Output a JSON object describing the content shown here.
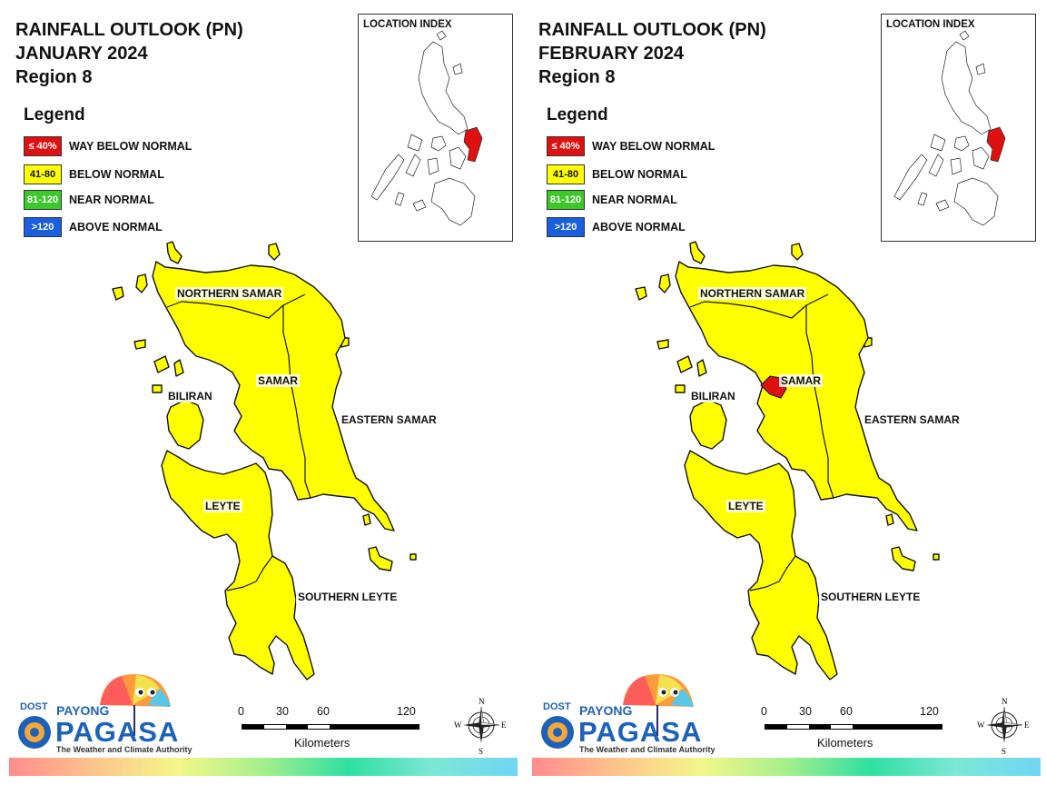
{
  "panels": [
    {
      "title_line1": "RAINFALL OUTLOOK (PN)",
      "title_line2": "JANUARY 2024",
      "title_line3": "Region 8",
      "dry_spot_color": ""
    },
    {
      "title_line1": "RAINFALL OUTLOOK (PN)",
      "title_line2": "FEBRUARY 2024",
      "title_line3": "Region 8",
      "dry_spot_color": "#e01010"
    }
  ],
  "legend": {
    "heading": "Legend",
    "items": [
      {
        "range": "≤ 40%",
        "label": "WAY BELOW NORMAL",
        "color": "#e01010",
        "text_color": "#ffffff"
      },
      {
        "range": "41-80",
        "label": "BELOW NORMAL",
        "color": "#ffff00",
        "text_color": "#111111"
      },
      {
        "range": "81-120",
        "label": "NEAR NORMAL",
        "color": "#3cc82a",
        "text_color": "#ffffff"
      },
      {
        "range": ">120",
        "label": "ABOVE NORMAL",
        "color": "#1a5ee0",
        "text_color": "#ffffff"
      }
    ]
  },
  "inset": {
    "title": "LOCATION INDEX",
    "highlight_color": "#e01010"
  },
  "provinces": {
    "northern_samar": "NORTHERN SAMAR",
    "samar": "SAMAR",
    "biliran": "BILIRAN",
    "eastern_samar": "EASTERN SAMAR",
    "leyte": "LEYTE",
    "southern_leyte": "SOUTHERN LEYTE"
  },
  "map_fill_color": "#ffff00",
  "scale": {
    "ticks": [
      "0",
      "30",
      "60",
      "120"
    ],
    "unit": "Kilometers"
  },
  "compass": {
    "n": "N",
    "s": "S",
    "e": "E",
    "w": "W"
  },
  "logo": {
    "dost": "DOST",
    "payong": "PAYONG",
    "pagasa": "PAGASA",
    "tagline": "The Weather and Climate Authority"
  }
}
